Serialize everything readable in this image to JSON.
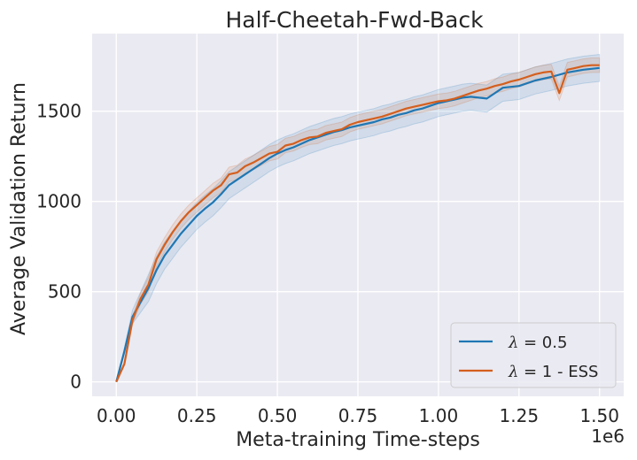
{
  "chart_data": {
    "type": "line",
    "title": "Half-Cheetah-Fwd-Back",
    "xlabel": "Meta-training Time-steps",
    "ylabel": "Average Validation Return",
    "x_scale_label": "1e6",
    "xlim": [
      -0.075,
      1.575
    ],
    "ylim": [
      -80,
      1930
    ],
    "xticks": [
      0.0,
      0.25,
      0.5,
      0.75,
      1.0,
      1.25,
      1.5
    ],
    "xtick_labels": [
      "0.00",
      "0.25",
      "0.50",
      "0.75",
      "1.00",
      "1.25",
      "1.50"
    ],
    "yticks": [
      0,
      500,
      1000,
      1500
    ],
    "ytick_labels": [
      "0",
      "500",
      "1000",
      "1500"
    ],
    "grid": true,
    "legend_position": "bottom-right",
    "series": [
      {
        "name": "λ = 0.5",
        "legend_symbol": "λ",
        "legend_suffix": " = 0.5",
        "color": "#1f77b4",
        "x": [
          0.0,
          0.025,
          0.05,
          0.075,
          0.1,
          0.125,
          0.15,
          0.175,
          0.2,
          0.225,
          0.25,
          0.275,
          0.3,
          0.325,
          0.35,
          0.375,
          0.4,
          0.425,
          0.45,
          0.475,
          0.5,
          0.525,
          0.55,
          0.575,
          0.6,
          0.625,
          0.65,
          0.675,
          0.7,
          0.725,
          0.75,
          0.775,
          0.8,
          0.825,
          0.85,
          0.875,
          0.9,
          0.925,
          0.95,
          0.975,
          1.0,
          1.025,
          1.05,
          1.075,
          1.1,
          1.125,
          1.15,
          1.2,
          1.25,
          1.3,
          1.35,
          1.4,
          1.45,
          1.5
        ],
        "values": [
          0,
          170,
          360,
          440,
          520,
          620,
          700,
          760,
          820,
          870,
          920,
          960,
          995,
          1040,
          1090,
          1120,
          1150,
          1180,
          1210,
          1240,
          1265,
          1285,
          1300,
          1320,
          1340,
          1355,
          1370,
          1385,
          1395,
          1410,
          1420,
          1430,
          1440,
          1455,
          1465,
          1480,
          1490,
          1505,
          1515,
          1530,
          1545,
          1555,
          1565,
          1575,
          1580,
          1575,
          1570,
          1630,
          1640,
          1670,
          1690,
          1715,
          1730,
          1740
        ],
        "band": 75
      },
      {
        "name": "λ = 1 - ESS",
        "legend_symbol": "λ",
        "legend_suffix": " = 1 - ESS",
        "color": "#d45f1e",
        "x": [
          0.0,
          0.025,
          0.05,
          0.075,
          0.1,
          0.125,
          0.15,
          0.175,
          0.2,
          0.225,
          0.25,
          0.275,
          0.3,
          0.325,
          0.35,
          0.375,
          0.4,
          0.425,
          0.45,
          0.475,
          0.5,
          0.525,
          0.55,
          0.575,
          0.6,
          0.625,
          0.65,
          0.675,
          0.7,
          0.725,
          0.75,
          0.775,
          0.8,
          0.825,
          0.85,
          0.875,
          0.9,
          0.925,
          0.95,
          0.975,
          1.0,
          1.025,
          1.05,
          1.075,
          1.1,
          1.125,
          1.15,
          1.175,
          1.2,
          1.225,
          1.25,
          1.275,
          1.3,
          1.325,
          1.35,
          1.375,
          1.4,
          1.425,
          1.45,
          1.475,
          1.5
        ],
        "values": [
          0,
          100,
          340,
          460,
          540,
          680,
          760,
          830,
          890,
          940,
          980,
          1020,
          1060,
          1090,
          1150,
          1160,
          1195,
          1215,
          1240,
          1265,
          1275,
          1310,
          1320,
          1340,
          1355,
          1360,
          1380,
          1390,
          1400,
          1425,
          1440,
          1450,
          1460,
          1470,
          1485,
          1500,
          1515,
          1525,
          1535,
          1545,
          1555,
          1560,
          1570,
          1585,
          1600,
          1615,
          1625,
          1640,
          1650,
          1665,
          1675,
          1690,
          1705,
          1715,
          1720,
          1600,
          1730,
          1740,
          1750,
          1755,
          1755
        ],
        "band": 40
      }
    ]
  }
}
